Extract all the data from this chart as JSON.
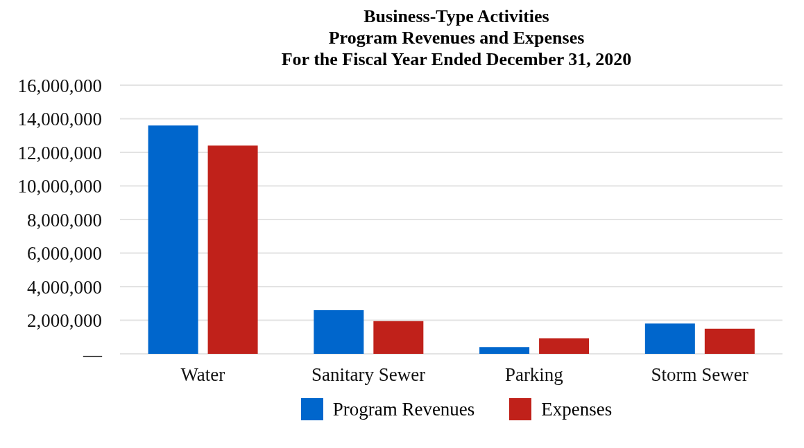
{
  "chart_data": {
    "type": "bar",
    "title": "Business-Type Activities\nProgram Revenues and Expenses\nFor the Fiscal Year Ended December 31, 2020",
    "categories": [
      "Water",
      "Sanitary Sewer",
      "Parking",
      "Storm Sewer"
    ],
    "series": [
      {
        "name": "Program Revenues",
        "color": "#0066cc",
        "values": [
          13600000,
          2600000,
          400000,
          1800000
        ]
      },
      {
        "name": "Expenses",
        "color": "#c0211a",
        "values": [
          12400000,
          1950000,
          930000,
          1500000
        ]
      }
    ],
    "ylim": [
      0,
      16000000
    ],
    "yticks": [
      {
        "value": 0,
        "label": "—"
      },
      {
        "value": 2000000,
        "label": "2,000,000"
      },
      {
        "value": 4000000,
        "label": "4,000,000"
      },
      {
        "value": 6000000,
        "label": "6,000,000"
      },
      {
        "value": 8000000,
        "label": "8,000,000"
      },
      {
        "value": 10000000,
        "label": "10,000,000"
      },
      {
        "value": 12000000,
        "label": "12,000,000"
      },
      {
        "value": 14000000,
        "label": "14,000,000"
      },
      {
        "value": 16000000,
        "label": "16,000,000"
      }
    ],
    "grid": "y",
    "legend": "bottom"
  }
}
